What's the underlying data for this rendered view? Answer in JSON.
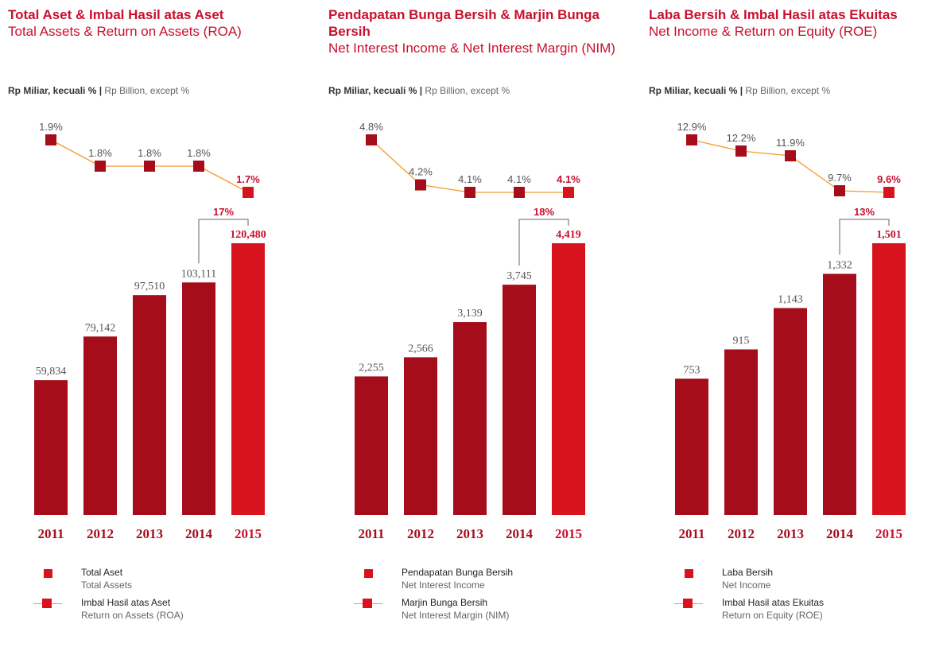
{
  "panels": [
    {
      "title_id": "Total Aset & Imbal Hasil atas Aset",
      "title_en": "Total Assets & Return on Assets (ROA)",
      "unit_id": "Rp Miliar, kecuali %",
      "unit_sep": "|",
      "unit_en": "Rp Billion, except %",
      "growth_label": "17%",
      "legend": [
        {
          "id": "Total Aset",
          "en": "Total Assets"
        },
        {
          "id": "Imbal Hasil atas Aset",
          "en": "Return on Assets (ROA)"
        }
      ]
    },
    {
      "title_id": "Pendapatan Bunga Bersih & Marjin Bunga Bersih",
      "title_en": "Net Interest Income & Net Interest Margin (NIM)",
      "unit_id": "Rp Miliar, kecuali %",
      "unit_sep": "|",
      "unit_en": "Rp Billion, except %",
      "growth_label": "18%",
      "legend": [
        {
          "id": "Pendapatan Bunga Bersih",
          "en": "Net Interest Income"
        },
        {
          "id": "Marjin Bunga Bersih",
          "en": "Net Interest Margin (NIM)"
        }
      ]
    },
    {
      "title_id": "Laba Bersih & Imbal Hasil atas Ekuitas",
      "title_en": "Net Income & Return on Equity (ROE)",
      "unit_id": "Rp Miliar, kecuali %",
      "unit_sep": "|",
      "unit_en": "Rp Billion, except %",
      "growth_label": "13%",
      "legend": [
        {
          "id": "Laba Bersih",
          "en": "Net Income"
        },
        {
          "id": "Imbal Hasil atas Ekuitas",
          "en": "Return on Equity (ROE)"
        }
      ]
    }
  ],
  "colors": {
    "title": "#c8102e",
    "bar": "#a50d1a",
    "bar_highlight": "#d7141e",
    "line": "#f39a2d",
    "marker": "#a50d1a",
    "marker_highlight": "#d7141e"
  },
  "chart_data": [
    {
      "type": "bar",
      "title": "Total Aset & Imbal Hasil atas Aset / Total Assets & Return on Assets (ROA)",
      "categories": [
        "2011",
        "2012",
        "2013",
        "2014",
        "2015"
      ],
      "series": [
        {
          "name": "Total Aset / Total Assets",
          "type": "bar",
          "values": [
            59834,
            79142,
            97510,
            103111,
            120480
          ],
          "labels": [
            "59,834",
            "79,142",
            "97,510",
            "103,111",
            "120,480"
          ]
        },
        {
          "name": "Imbal Hasil atas Aset / Return on Assets (ROA)",
          "type": "line",
          "values": [
            1.9,
            1.8,
            1.8,
            1.8,
            1.7
          ],
          "labels": [
            "1.9%",
            "1.8%",
            "1.8%",
            "1.8%",
            "1.7%"
          ]
        }
      ],
      "annotation": "17%"
    },
    {
      "type": "bar",
      "title": "Pendapatan Bunga Bersih & Marjin Bunga Bersih / Net Interest Income & Net Interest Margin (NIM)",
      "categories": [
        "2011",
        "2012",
        "2013",
        "2014",
        "2015"
      ],
      "series": [
        {
          "name": "Pendapatan Bunga Bersih / Net Interest Income",
          "type": "bar",
          "values": [
            2255,
            2566,
            3139,
            3745,
            4419
          ],
          "labels": [
            "2,255",
            "2,566",
            "3,139",
            "3,745",
            "4,419"
          ]
        },
        {
          "name": "Marjin Bunga Bersih / Net Interest Margin (NIM)",
          "type": "line",
          "values": [
            4.8,
            4.2,
            4.1,
            4.1,
            4.1
          ],
          "labels": [
            "4.8%",
            "4.2%",
            "4.1%",
            "4.1%",
            "4.1%"
          ]
        }
      ],
      "annotation": "18%"
    },
    {
      "type": "bar",
      "title": "Laba Bersih & Imbal Hasil atas Ekuitas / Net Income & Return on Equity (ROE)",
      "categories": [
        "2011",
        "2012",
        "2013",
        "2014",
        "2015"
      ],
      "series": [
        {
          "name": "Laba Bersih / Net Income",
          "type": "bar",
          "values": [
            753,
            915,
            1143,
            1332,
            1501
          ],
          "labels": [
            "753",
            "915",
            "1,143",
            "1,332",
            "1,501"
          ]
        },
        {
          "name": "Imbal Hasil atas Ekuitas / Return on Equity (ROE)",
          "type": "line",
          "values": [
            12.9,
            12.2,
            11.9,
            9.7,
            9.6
          ],
          "labels": [
            "12.9%",
            "12.2%",
            "11.9%",
            "9.7%",
            "9.6%"
          ]
        }
      ],
      "annotation": "13%"
    }
  ]
}
